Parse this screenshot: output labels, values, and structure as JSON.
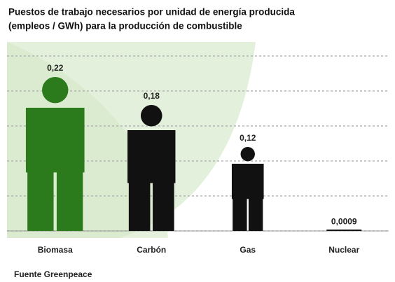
{
  "chart_data": {
    "type": "pictograph",
    "title": [
      "Puestos de trabajo necesarios por unidad de energía producida",
      "(empleos / GWh) para la producción de combustible"
    ],
    "categories": [
      "Biomasa",
      "Carbón",
      "Gas",
      "Nuclear"
    ],
    "values": [
      0.22,
      0.18,
      0.12,
      0.0009
    ],
    "value_labels": [
      "0,22",
      "0,18",
      "0,12",
      "0,0009"
    ],
    "colors": [
      "#2b7a1c",
      "#111111",
      "#111111",
      "#111111"
    ],
    "ylim": [
      0,
      0.25
    ],
    "yticks": [
      0,
      0.05,
      0.1,
      0.15,
      0.2,
      0.25
    ],
    "grid": true,
    "source": "Fuente Greenpeace"
  }
}
